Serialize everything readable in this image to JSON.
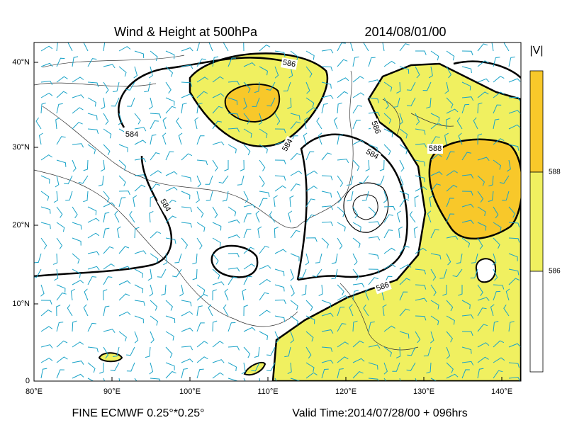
{
  "header": {
    "title": "Wind & Height at 500hPa",
    "time": "2014/08/01/00"
  },
  "map": {
    "lat_labels": [
      "40°N",
      "30°N",
      "20°N",
      "10°N",
      "0"
    ],
    "lon_labels": [
      "80°E",
      "90°E",
      "100°E",
      "110°E",
      "120°E",
      "130°E",
      "140°E"
    ],
    "contour_labels": [
      "586",
      "584",
      "584",
      "586",
      "584",
      "584",
      "588",
      "586"
    ]
  },
  "colorbar": {
    "title": "|V|",
    "labels": [
      "588",
      "586"
    ]
  },
  "footer": {
    "source": "FINE ECMWF 0.25°*0.25°",
    "valid": "Valid Time:2014/07/28/00 + 096hrs"
  }
}
